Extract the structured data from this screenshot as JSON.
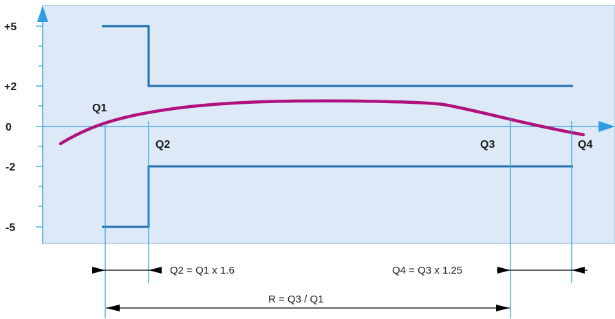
{
  "colors": {
    "panel_fill": "#dde9f7",
    "panel_stroke": "#a9c6e8",
    "axis_arrow": "#2f9be3",
    "step_line": "#1f6fb0",
    "curve": "#b0127d",
    "vertical_line": "#2aa7d9",
    "annotation": "#000000"
  },
  "y_axis": {
    "ticks": [
      {
        "label": "+5",
        "value": 5
      },
      {
        "label": "+2",
        "value": 2
      },
      {
        "label": "0",
        "value": 0
      },
      {
        "label": "-2",
        "value": -2
      },
      {
        "label": "-5",
        "value": -5
      }
    ],
    "range": [
      -5,
      5
    ]
  },
  "markers": {
    "q1": "Q1",
    "q2": "Q2",
    "q3": "Q3",
    "q4": "Q4"
  },
  "annotations": {
    "q2_rule": "Q2 = Q1 x 1.6",
    "q4_rule": "Q4 = Q3 x 1.25",
    "r_rule": "R = Q3 / Q1"
  }
}
